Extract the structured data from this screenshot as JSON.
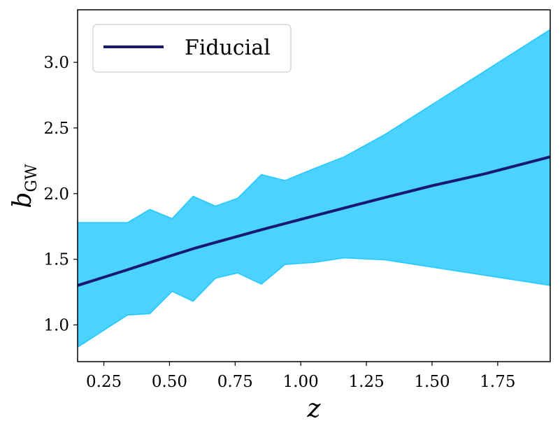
{
  "chart_data": {
    "type": "line",
    "xlabel": "z",
    "ylabel": {
      "main": "b",
      "subscript": "GW"
    },
    "xlim": [
      0.15,
      1.95
    ],
    "ylim": [
      0.72,
      3.4
    ],
    "xticks": [
      0.25,
      0.5,
      0.75,
      1.0,
      1.25,
      1.5,
      1.75
    ],
    "xtick_labels": [
      "0.25",
      "0.50",
      "0.75",
      "1.00",
      "1.25",
      "1.50",
      "1.75"
    ],
    "yticks": [
      1.0,
      1.5,
      2.0,
      2.5,
      3.0
    ],
    "ytick_labels": [
      "1.0",
      "1.5",
      "2.0",
      "2.5",
      "3.0"
    ],
    "grid": false,
    "legend": {
      "position": "top-left",
      "entries": [
        "Fiducial"
      ]
    },
    "series": [
      {
        "name": "Fiducial",
        "color": "#191970",
        "x": [
          0.15,
          0.34,
          0.425,
          0.51,
          0.59,
          0.675,
          0.76,
          0.85,
          0.94,
          1.05,
          1.165,
          1.32,
          1.5,
          1.7,
          1.95
        ],
        "y": [
          1.3,
          1.42,
          1.475,
          1.53,
          1.58,
          1.628,
          1.675,
          1.725,
          1.772,
          1.83,
          1.89,
          1.97,
          2.06,
          2.15,
          2.28
        ]
      }
    ],
    "band": {
      "color": "#00bfff",
      "x": [
        0.15,
        0.34,
        0.425,
        0.51,
        0.59,
        0.675,
        0.76,
        0.85,
        0.94,
        1.05,
        1.165,
        1.32,
        1.95
      ],
      "upper": [
        1.78,
        1.78,
        1.88,
        1.81,
        1.98,
        1.905,
        1.965,
        2.145,
        2.1,
        2.19,
        2.28,
        2.45,
        3.25
      ],
      "lower": [
        0.83,
        1.075,
        1.085,
        1.255,
        1.18,
        1.355,
        1.395,
        1.31,
        1.46,
        1.475,
        1.51,
        1.495,
        1.3
      ]
    }
  }
}
